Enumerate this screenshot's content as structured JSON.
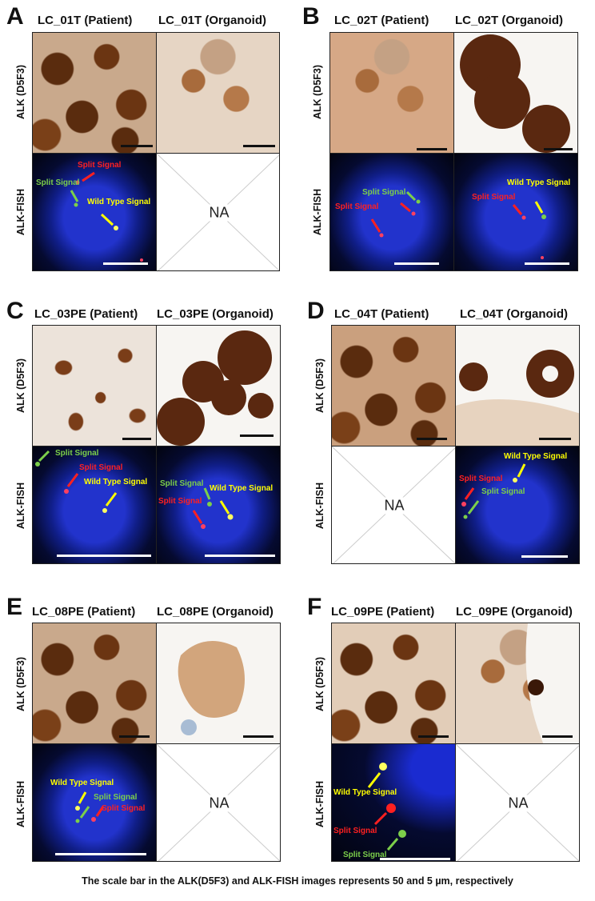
{
  "caption": "The scale bar in the ALK(D5F3) and ALK-FISH images represents 50 and 5 µm, respectively",
  "row_labels": {
    "ihc": "ALK (D5F3)",
    "fish": "ALK-FISH"
  },
  "na_label": "NA",
  "signals": {
    "split": "Split Signal",
    "wild": "Wild Type Signal"
  },
  "colors": {
    "split_red": "#ff2020",
    "split_green": "#7ccf4a",
    "wild_yellow": "#ffff00",
    "nuclear_blue": "#1a2bd0"
  },
  "panels": [
    {
      "letter": "A",
      "patient_title": "LC_01T (Patient)",
      "organoid_title": "LC_01T (Organoid)",
      "patient_fish": true,
      "organoid_fish": false
    },
    {
      "letter": "B",
      "patient_title": "LC_02T (Patient)",
      "organoid_title": "LC_02T (Organoid)",
      "patient_fish": true,
      "organoid_fish": true
    },
    {
      "letter": "C",
      "patient_title": "LC_03PE (Patient)",
      "organoid_title": "LC_03PE (Organoid)",
      "patient_fish": true,
      "organoid_fish": true
    },
    {
      "letter": "D",
      "patient_title": "LC_04T (Patient)",
      "organoid_title": "LC_04T (Organoid)",
      "patient_fish": false,
      "organoid_fish": true
    },
    {
      "letter": "E",
      "patient_title": "LC_08PE (Patient)",
      "organoid_title": "LC_08PE (Organoid)",
      "patient_fish": true,
      "organoid_fish": false
    },
    {
      "letter": "F",
      "patient_title": "LC_09PE (Patient)",
      "organoid_title": "LC_09PE (Organoid)",
      "patient_fish": true,
      "organoid_fish": false
    }
  ]
}
